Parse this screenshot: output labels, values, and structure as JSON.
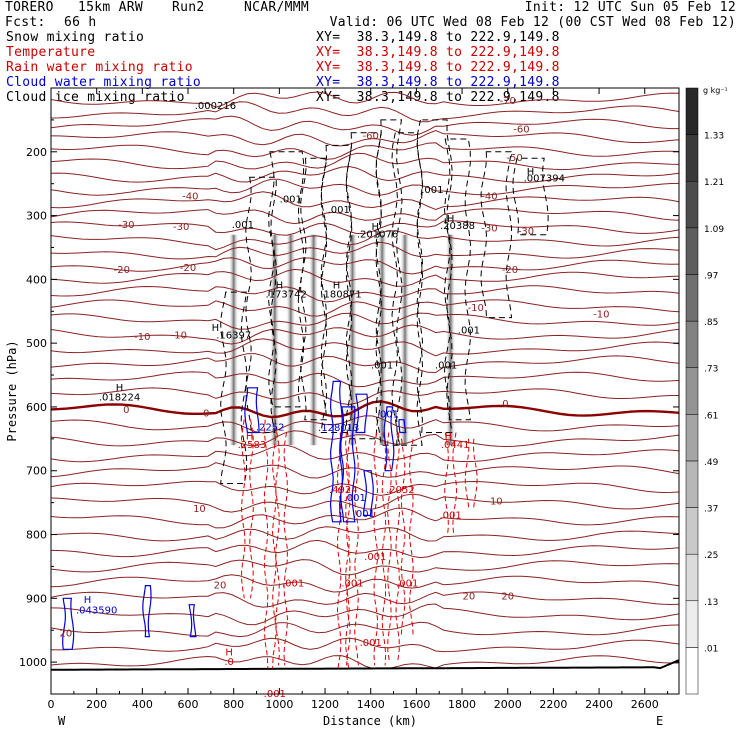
{
  "header": {
    "model": "TORERO",
    "resolution": "15km ARW",
    "run": "Run2",
    "center": "NCAR/MMM",
    "init": "Init: 12 UTC Sun 05 Feb 12",
    "fcst_label": "Fcst:",
    "fcst_value": "66 h",
    "valid": "Valid: 06 UTC Wed 08 Feb 12 (00 CST Wed 08 Feb 12)"
  },
  "legend": [
    {
      "name": "Snow mixing ratio",
      "xy": "XY=  38.3,149.8 to 222.9,149.8",
      "color": "#000000"
    },
    {
      "name": "Temperature",
      "xy": "XY=  38.3,149.8 to 222.9,149.8",
      "color": "#cc0000"
    },
    {
      "name": "Rain water mixing ratio",
      "xy": "XY=  38.3,149.8 to 222.9,149.8",
      "color": "#cc0000"
    },
    {
      "name": "Cloud water mixing ratio",
      "xy": "XY=  38.3,149.8 to 222.9,149.8",
      "color": "#0000cc"
    },
    {
      "name": "Cloud ice mixing ratio",
      "xy": "XY=  38.3,149.8 to 222.9,149.8",
      "color": "#000000"
    }
  ],
  "chart_data": {
    "type": "contour",
    "xlabel": "Distance (km)",
    "ylabel": "Pressure (hPa)",
    "xlim": [
      0,
      2750
    ],
    "ylim": [
      1050,
      100
    ],
    "x_ticks": [
      0,
      200,
      400,
      600,
      800,
      1000,
      1200,
      1400,
      1600,
      1800,
      2000,
      2200,
      2400,
      2600
    ],
    "y_ticks": [
      200,
      300,
      400,
      500,
      600,
      700,
      800,
      900,
      1000
    ],
    "left_end_label": "W",
    "right_end_label": "E",
    "colorbar": {
      "unit": "g kg⁻¹",
      "ticks": [
        ".01",
        ".13",
        ".25",
        ".37",
        ".49",
        ".61",
        ".73",
        ".85",
        ".97",
        "1.09",
        "1.21",
        "1.33"
      ]
    },
    "temperature_contours": [
      {
        "value": -70,
        "label": "-70",
        "x": 2000,
        "p": 120
      },
      {
        "value": -60,
        "label": "-60",
        "x": 2060,
        "p": 165
      },
      {
        "value": -60,
        "label": "-60",
        "x": 1400,
        "p": 175
      },
      {
        "value": -50,
        "label": "-50",
        "x": 2030,
        "p": 210
      },
      {
        "value": -40,
        "label": "-40",
        "x": 610,
        "p": 270
      },
      {
        "value": -40,
        "label": "-40",
        "x": 1920,
        "p": 270
      },
      {
        "value": -30,
        "label": "-30",
        "x": 330,
        "p": 315
      },
      {
        "value": -30,
        "label": "-30",
        "x": 570,
        "p": 318
      },
      {
        "value": -30,
        "label": "-30",
        "x": 1920,
        "p": 320
      },
      {
        "value": -30,
        "label": "-30",
        "x": 2080,
        "p": 325
      },
      {
        "value": -20,
        "label": "-20",
        "x": 310,
        "p": 385
      },
      {
        "value": -20,
        "label": "-20",
        "x": 600,
        "p": 382
      },
      {
        "value": -20,
        "label": "-20",
        "x": 2010,
        "p": 385
      },
      {
        "value": -10,
        "label": "-10",
        "x": 400,
        "p": 490
      },
      {
        "value": -10,
        "label": "-10",
        "x": 560,
        "p": 488
      },
      {
        "value": -10,
        "label": "-10",
        "x": 1860,
        "p": 445
      },
      {
        "value": -10,
        "label": "-10",
        "x": 2410,
        "p": 455
      },
      {
        "value": 0,
        "label": "0",
        "x": 330,
        "p": 605
      },
      {
        "value": 0,
        "label": "0",
        "x": 680,
        "p": 610
      },
      {
        "value": 0,
        "label": "0",
        "x": 1990,
        "p": 595
      },
      {
        "value": 10,
        "label": "10",
        "x": 650,
        "p": 760
      },
      {
        "value": 10,
        "label": "10",
        "x": 1950,
        "p": 748
      },
      {
        "value": 20,
        "label": "20",
        "x": 740,
        "p": 880
      },
      {
        "value": 20,
        "label": "20",
        "x": 1830,
        "p": 897
      },
      {
        "value": 20,
        "label": "20",
        "x": 2000,
        "p": 897
      },
      {
        "value": 20,
        "label": "20",
        "x": 65,
        "p": 955
      }
    ],
    "maxima_labels": [
      {
        "field": "cloud_ice",
        "text": ".000216",
        "x": 720,
        "p": 128
      },
      {
        "field": "snow",
        "text": ".001",
        "x": 1670,
        "p": 260
      },
      {
        "field": "snow",
        "text": ".007394",
        "x": 2160,
        "p": 242
      },
      {
        "field": "snow",
        "text": ".001",
        "x": 1050,
        "p": 275
      },
      {
        "field": "snow",
        "text": ".001",
        "x": 1260,
        "p": 291
      },
      {
        "field": "snow",
        "text": ".001",
        "x": 840,
        "p": 315
      },
      {
        "field": "snow",
        "text": ".201076",
        "x": 1430,
        "p": 330
      },
      {
        "field": "snow",
        "text": ".20388",
        "x": 1780,
        "p": 316
      },
      {
        "field": "snow",
        "text": ".173742",
        "x": 1030,
        "p": 424
      },
      {
        "field": "snow",
        "text": ".180871",
        "x": 1270,
        "p": 424
      },
      {
        "field": "snow",
        "text": ".16397",
        "x": 800,
        "p": 488
      },
      {
        "field": "snow",
        "text": ".001",
        "x": 1450,
        "p": 535
      },
      {
        "field": "snow",
        "text": ".001",
        "x": 1730,
        "p": 535
      },
      {
        "field": "snow",
        "text": ".001",
        "x": 1830,
        "p": 480
      },
      {
        "field": "snow",
        "text": ".018224",
        "x": 300,
        "p": 585
      },
      {
        "field": "cloud_water",
        "text": ".2252",
        "x": 960,
        "p": 632
      },
      {
        "field": "cloud_water",
        "text": ".128013",
        "x": 1260,
        "p": 633
      },
      {
        "field": "cloud_water",
        "text": ".001",
        "x": 1475,
        "p": 612
      },
      {
        "field": "rain",
        "text": ".2583",
        "x": 880,
        "p": 660
      },
      {
        "field": "rain",
        "text": ".0441",
        "x": 1770,
        "p": 660
      },
      {
        "field": "rain",
        "text": ".4924",
        "x": 1280,
        "p": 730
      },
      {
        "field": "rain",
        "text": ".2052",
        "x": 1530,
        "p": 730
      },
      {
        "field": "rain",
        "text": ".001",
        "x": 1750,
        "p": 770
      },
      {
        "field": "cloud_water",
        "text": ".001",
        "x": 1330,
        "p": 743
      },
      {
        "field": "cloud_water",
        "text": ".001",
        "x": 1370,
        "p": 768
      },
      {
        "field": "rain",
        "text": ".001",
        "x": 1420,
        "p": 835
      },
      {
        "field": "rain",
        "text": ".001",
        "x": 1060,
        "p": 877
      },
      {
        "field": "rain",
        "text": ".001",
        "x": 1320,
        "p": 877
      },
      {
        "field": "rain",
        "text": ".001",
        "x": 1560,
        "p": 877
      },
      {
        "field": "rain",
        "text": ".001",
        "x": 1400,
        "p": 970
      },
      {
        "field": "rain",
        "text": ".0",
        "x": 780,
        "p": 1000
      },
      {
        "field": "rain",
        "text": ".001",
        "x": 980,
        "p": 1050
      },
      {
        "field": "cloud_water",
        "text": ".043590",
        "x": 200,
        "p": 919
      }
    ],
    "highs": [
      {
        "field": "snow",
        "x": 2100,
        "p": 232
      },
      {
        "field": "snow",
        "x": 1420,
        "p": 318
      },
      {
        "field": "snow",
        "x": 1750,
        "p": 305
      },
      {
        "field": "snow",
        "x": 1000,
        "p": 410
      },
      {
        "field": "snow",
        "x": 1250,
        "p": 410
      },
      {
        "field": "snow",
        "x": 720,
        "p": 476
      },
      {
        "field": "snow",
        "x": 300,
        "p": 570
      },
      {
        "field": "rain",
        "x": 870,
        "p": 646
      },
      {
        "field": "rain",
        "x": 1740,
        "p": 646
      },
      {
        "field": "rain",
        "x": 780,
        "p": 985
      },
      {
        "field": "cloud_water",
        "x": 160,
        "p": 903
      }
    ],
    "bright_columns": [
      800,
      980,
      1050,
      1150,
      1320,
      1450,
      1550,
      1750
    ]
  }
}
